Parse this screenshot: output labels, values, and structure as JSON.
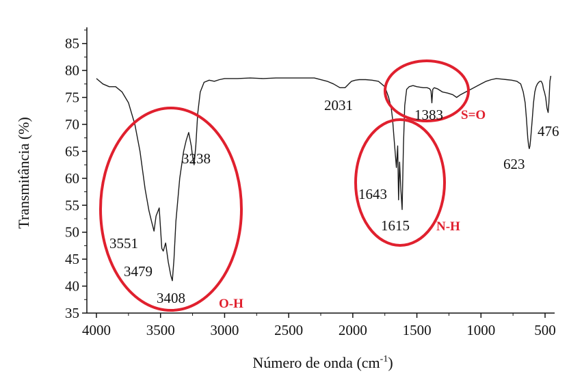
{
  "chart_data": {
    "type": "line",
    "xlabel": "Número de onda (cm",
    "xlabel_sup": "-1",
    "xlabel_end": ")",
    "ylabel": "Transmitância (%)",
    "xlim": [
      4000,
      450
    ],
    "ylim": [
      35,
      88
    ],
    "x_reversed": true,
    "x_ticks": [
      4000,
      3500,
      3000,
      2500,
      2000,
      1500,
      1000,
      500
    ],
    "y_ticks": [
      35,
      40,
      45,
      50,
      55,
      60,
      65,
      70,
      75,
      80,
      85
    ],
    "grid": false,
    "line_color": "#1a1a1a",
    "highlight_color": "#e0202e",
    "series": [
      {
        "x": [
          4000,
          3950,
          3900,
          3850,
          3800,
          3750,
          3700,
          3660,
          3620,
          3590,
          3570,
          3551,
          3535,
          3510,
          3490,
          3479,
          3460,
          3440,
          3420,
          3408,
          3395,
          3380,
          3350,
          3320,
          3300,
          3280,
          3260,
          3250,
          3238,
          3225,
          3210,
          3190,
          3160,
          3120,
          3080,
          3040,
          3000,
          2900,
          2800,
          2700,
          2600,
          2500,
          2400,
          2300,
          2200,
          2150,
          2100,
          2060,
          2031,
          2010,
          1980,
          1950,
          1900,
          1850,
          1800,
          1750,
          1720,
          1700,
          1690,
          1680,
          1670,
          1660,
          1650,
          1643,
          1635,
          1625,
          1615,
          1605,
          1595,
          1580,
          1560,
          1530,
          1500,
          1450,
          1420,
          1400,
          1390,
          1383,
          1376,
          1365,
          1340,
          1300,
          1260,
          1220,
          1190,
          1160,
          1120,
          1080,
          1040,
          1000,
          960,
          920,
          880,
          840,
          800,
          760,
          720,
          690,
          670,
          655,
          645,
          635,
          628,
          623,
          618,
          610,
          600,
          590,
          580,
          570,
          560,
          550,
          540,
          530,
          520,
          512,
          505,
          495,
          485,
          476,
          470,
          462,
          455
        ],
        "y": [
          78.5,
          77.5,
          77.0,
          77.0,
          76.0,
          74.0,
          70.0,
          65.0,
          58.0,
          54.0,
          52.0,
          50.2,
          53.0,
          54.5,
          47.0,
          46.5,
          48.0,
          44.5,
          42.0,
          41.0,
          45.0,
          52.0,
          60.0,
          65.0,
          67.0,
          68.5,
          66.0,
          64.0,
          62.5,
          66.0,
          72.0,
          76.0,
          77.8,
          78.2,
          78.0,
          78.3,
          78.5,
          78.5,
          78.6,
          78.5,
          78.6,
          78.6,
          78.6,
          78.6,
          78.0,
          77.5,
          76.8,
          76.8,
          77.5,
          78.0,
          78.2,
          78.3,
          78.3,
          78.2,
          78.0,
          77.0,
          75.0,
          73.0,
          71.0,
          68.0,
          65.0,
          62.0,
          66.0,
          56.0,
          63.0,
          58.0,
          54.2,
          66.0,
          73.5,
          76.5,
          77.0,
          77.2,
          77.0,
          76.8,
          76.8,
          76.6,
          76.2,
          74.0,
          76.5,
          76.8,
          76.6,
          76.0,
          75.8,
          75.5,
          75.0,
          75.5,
          76.0,
          76.5,
          77.0,
          77.5,
          78.0,
          78.3,
          78.5,
          78.4,
          78.3,
          78.2,
          78.0,
          77.5,
          76.0,
          74.0,
          71.0,
          67.5,
          66.0,
          65.5,
          66.0,
          68.0,
          71.0,
          74.0,
          76.0,
          77.0,
          77.5,
          77.8,
          78.0,
          78.0,
          77.5,
          76.5,
          76.0,
          75.0,
          73.0,
          72.2,
          74.0,
          78.0,
          79.0
        ]
      }
    ],
    "annotations": [
      {
        "label": "3551",
        "x": 3551,
        "y": 50.2
      },
      {
        "label": "3479",
        "x": 3479,
        "y": 46.5
      },
      {
        "label": "3408",
        "x": 3408,
        "y": 41.0
      },
      {
        "label": "3238",
        "x": 3238,
        "y": 62.5
      },
      {
        "label": "2031",
        "x": 2031,
        "y": 76.8
      },
      {
        "label": "1643",
        "x": 1643,
        "y": 56.0
      },
      {
        "label": "1615",
        "x": 1615,
        "y": 54.2
      },
      {
        "label": "1383",
        "x": 1383,
        "y": 74.0
      },
      {
        "label": "623",
        "x": 623,
        "y": 65.5
      },
      {
        "label": "476",
        "x": 476,
        "y": 72.2
      }
    ],
    "groups": [
      {
        "label": "O-H"
      },
      {
        "label": "N-H"
      },
      {
        "label": "S=O"
      }
    ]
  }
}
